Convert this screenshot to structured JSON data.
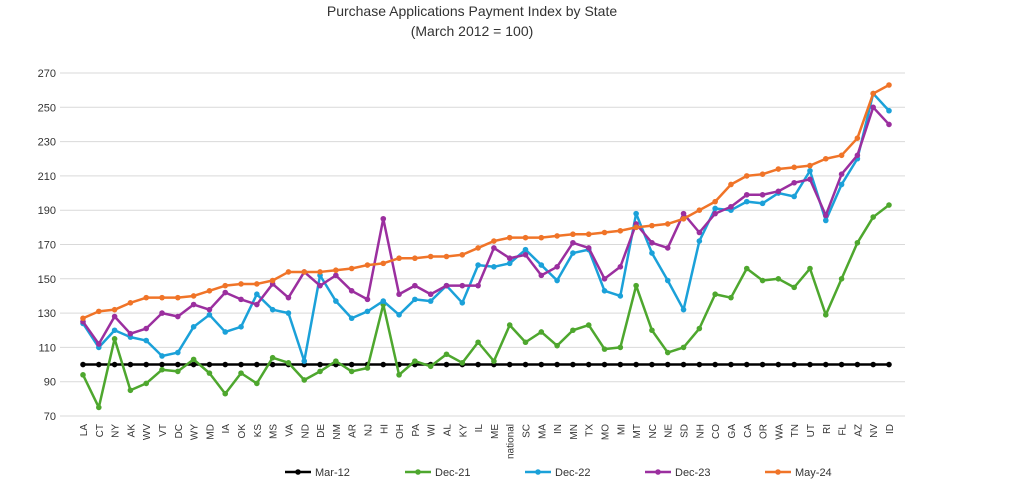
{
  "chart_data": {
    "type": "line",
    "title": "Purchase Applications Payment Index by State",
    "subtitle": "(March 2012 = 100)",
    "xlabel": "",
    "ylabel": "",
    "ylim": [
      70,
      270
    ],
    "yticks": [
      70,
      90,
      110,
      130,
      150,
      170,
      190,
      210,
      230,
      250,
      270
    ],
    "grid": true,
    "legend": "bottom",
    "categories": [
      "LA",
      "CT",
      "NY",
      "AK",
      "WV",
      "VT",
      "DC",
      "WY",
      "MD",
      "IA",
      "OK",
      "KS",
      "MS",
      "VA",
      "ND",
      "DE",
      "NM",
      "AR",
      "NJ",
      "HI",
      "OH",
      "PA",
      "WI",
      "AL",
      "KY",
      "IL",
      "ME",
      "national",
      "SC",
      "MA",
      "IN",
      "MN",
      "TX",
      "MO",
      "MI",
      "MT",
      "NC",
      "NE",
      "SD",
      "NH",
      "CO",
      "GA",
      "CA",
      "OR",
      "WA",
      "TN",
      "UT",
      "RI",
      "FL",
      "AZ",
      "NV",
      "ID"
    ],
    "series": [
      {
        "name": "Mar-12",
        "color": "#000000",
        "values": [
          100,
          100,
          100,
          100,
          100,
          100,
          100,
          100,
          100,
          100,
          100,
          100,
          100,
          100,
          100,
          100,
          100,
          100,
          100,
          100,
          100,
          100,
          100,
          100,
          100,
          100,
          100,
          100,
          100,
          100,
          100,
          100,
          100,
          100,
          100,
          100,
          100,
          100,
          100,
          100,
          100,
          100,
          100,
          100,
          100,
          100,
          100,
          100,
          100,
          100,
          100,
          100
        ]
      },
      {
        "name": "Dec-21",
        "color": "#4ea72e",
        "values": [
          94,
          75,
          115,
          85,
          89,
          97,
          96,
          103,
          95,
          83,
          95,
          89,
          104,
          101,
          91,
          96,
          102,
          96,
          98,
          135,
          94,
          102,
          99,
          106,
          101,
          113,
          102,
          123,
          113,
          119,
          111,
          120,
          123,
          109,
          110,
          146,
          120,
          107,
          110,
          121,
          141,
          139,
          156,
          149,
          150,
          145,
          156,
          129,
          150,
          171,
          186,
          193
        ]
      },
      {
        "name": "Dec-22",
        "color": "#1ba1d9",
        "values": [
          124,
          110,
          120,
          116,
          114,
          105,
          107,
          122,
          129,
          119,
          122,
          141,
          132,
          130,
          102,
          152,
          137,
          127,
          131,
          137,
          129,
          138,
          137,
          146,
          136,
          158,
          157,
          159,
          167,
          158,
          149,
          165,
          167,
          143,
          140,
          188,
          165,
          149,
          132,
          172,
          191,
          190,
          195,
          194,
          200,
          198,
          213,
          184,
          205,
          220,
          258,
          248
        ]
      },
      {
        "name": "Dec-23",
        "color": "#9b2f9f",
        "values": [
          125,
          112,
          128,
          118,
          121,
          130,
          128,
          135,
          132,
          142,
          138,
          135,
          147,
          139,
          154,
          146,
          152,
          143,
          138,
          185,
          141,
          146,
          141,
          146,
          146,
          146,
          168,
          162,
          164,
          152,
          157,
          171,
          168,
          150,
          157,
          182,
          171,
          168,
          188,
          177,
          188,
          192,
          199,
          199,
          201,
          206,
          208,
          187,
          211,
          222,
          250,
          240
        ]
      },
      {
        "name": "May-24",
        "color": "#f07428",
        "values": [
          127,
          131,
          132,
          136,
          139,
          139,
          139,
          140,
          143,
          146,
          147,
          147,
          149,
          154,
          154,
          154,
          155,
          156,
          158,
          159,
          162,
          162,
          163,
          163,
          164,
          168,
          172,
          174,
          174,
          174,
          175,
          176,
          176,
          177,
          178,
          180,
          181,
          182,
          185,
          190,
          195,
          205,
          210,
          211,
          214,
          215,
          216,
          220,
          222,
          232,
          258,
          263
        ]
      }
    ]
  }
}
